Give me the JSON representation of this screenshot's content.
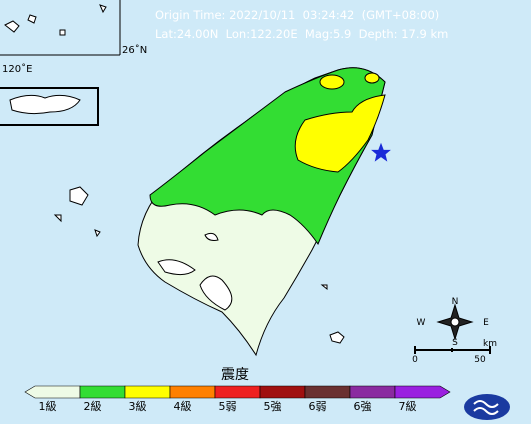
{
  "header": {
    "origin_time": "Origin Time: 2022/10/11  03:24:42  (GMT+08:00)",
    "location": "Lat:24.00N  Lon:122.20E  Mag:5.9  Depth: 17.9 km"
  },
  "map": {
    "latitude_label": "26˚N",
    "longitude_label": "120˚E"
  },
  "compass": {
    "north": "N",
    "south": "S",
    "west": "W",
    "east": "E"
  },
  "scale_bar": {
    "start": "0",
    "end": "50",
    "unit": "km"
  },
  "legend": {
    "title": "震度",
    "items": [
      {
        "label": "1級",
        "color": "#eefbe6"
      },
      {
        "label": "2級",
        "color": "#33dd33"
      },
      {
        "label": "3級",
        "color": "#ffff00"
      },
      {
        "label": "4級",
        "color": "#ff8000"
      },
      {
        "label": "5弱",
        "color": "#ee2020"
      },
      {
        "label": "5強",
        "color": "#a01010"
      },
      {
        "label": "6弱",
        "color": "#6a3030"
      },
      {
        "label": "6強",
        "color": "#8a2aa0"
      },
      {
        "label": "7級",
        "color": "#9a20e0"
      }
    ]
  }
}
